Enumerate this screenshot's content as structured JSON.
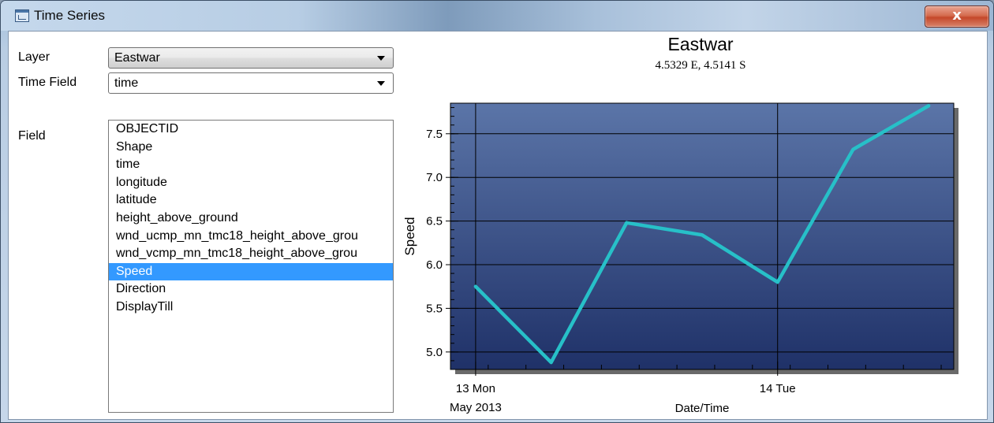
{
  "window": {
    "title": "Time Series",
    "close_glyph": "x",
    "icon": "window-app-icon"
  },
  "form": {
    "layer_label": "Layer",
    "layer_value": "Eastwar",
    "time_field_label": "Time Field",
    "time_field_value": "time",
    "field_label": "Field",
    "fields": [
      "OBJECTID",
      "Shape",
      "time",
      "longitude",
      "latitude",
      "height_above_ground",
      "wnd_ucmp_mn_tmc18_height_above_grou",
      "wnd_vcmp_mn_tmc18_height_above_grou",
      "Speed",
      "Direction",
      "DisplayTill"
    ],
    "selected_field": "Speed"
  },
  "chart_data": {
    "type": "line",
    "title": "Eastwar",
    "subtitle": "4.5329 E, 4.5141 S",
    "xlabel": "Date/Time",
    "ylabel": "Speed",
    "x": [
      "2013-05-13 00:00",
      "2013-05-13 06:00",
      "2013-05-13 12:00",
      "2013-05-13 18:00",
      "2013-05-14 00:00",
      "2013-05-14 06:00",
      "2013-05-14 12:00"
    ],
    "series": [
      {
        "values": [
          5.75,
          4.88,
          6.48,
          6.34,
          5.8,
          7.32,
          7.82
        ],
        "color": "#27c0c8"
      }
    ],
    "ylim": [
      4.8,
      7.85
    ],
    "xlim": [
      "2013-05-12 22:00",
      "2013-05-14 14:00"
    ],
    "yticks": [
      5.0,
      5.5,
      6.0,
      6.5,
      7.0,
      7.5
    ],
    "ytick_labels": [
      "5.0",
      "5.5",
      "6.0",
      "6.5",
      "7.0",
      "7.5"
    ],
    "xticks": [
      {
        "at": "2013-05-13 00:00",
        "label": "13 Mon",
        "sublabel": "May 2013"
      },
      {
        "at": "2013-05-14 00:00",
        "label": "14 Tue",
        "sublabel": ""
      }
    ],
    "grid": true,
    "background": [
      "#5b75a8",
      "#1f3168"
    ]
  }
}
